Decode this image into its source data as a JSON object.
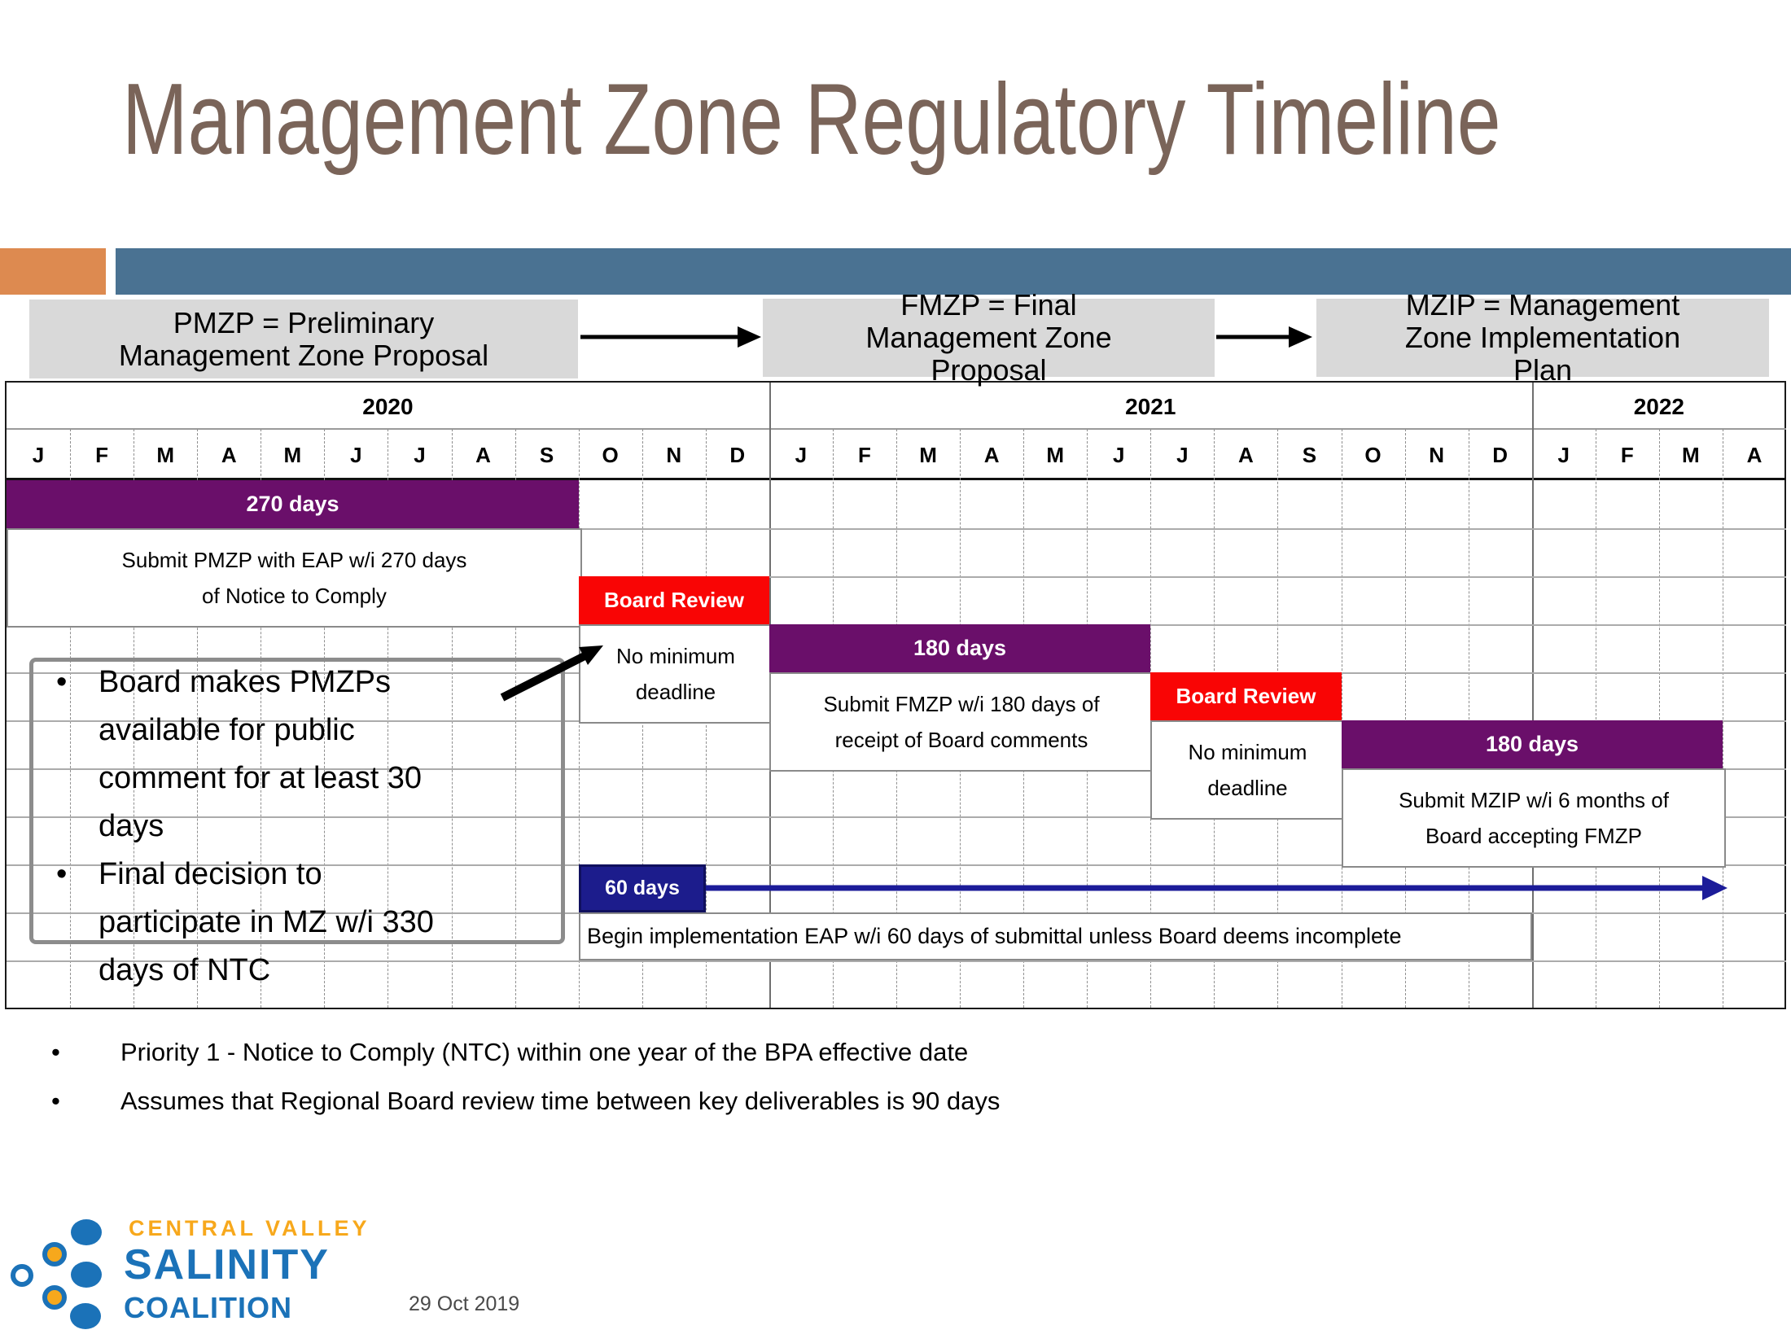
{
  "slide": {
    "title": "Management Zone Regulatory Timeline",
    "date": "29 Oct 2019"
  },
  "legend_flow": {
    "pmzp": "PMZP = Preliminary\nManagement Zone Proposal",
    "fmzp": "FMZP = Final\nManagement Zone\nProposal",
    "mzip": "MZIP = Management\nZone Implementation\nPlan"
  },
  "timeline": {
    "years": [
      {
        "label": "2020",
        "months": [
          "J",
          "F",
          "M",
          "A",
          "M",
          "J",
          "J",
          "A",
          "S",
          "O",
          "N",
          "D"
        ]
      },
      {
        "label": "2021",
        "months": [
          "J",
          "F",
          "M",
          "A",
          "M",
          "J",
          "J",
          "A",
          "S",
          "O",
          "N",
          "D"
        ]
      },
      {
        "label": "2022",
        "months": [
          "J",
          "F",
          "M",
          "A"
        ]
      }
    ],
    "bars": {
      "pmzp_bar": {
        "label": "270 days",
        "start": "Jan 2020",
        "months": 9,
        "note": "Submit PMZP with EAP w/i 270 days\nof Notice to Comply"
      },
      "review1": {
        "label": "Board Review",
        "start": "Oct 2020",
        "months": 3,
        "note": "No minimum\ndeadline"
      },
      "fmzp_bar": {
        "label": "180 days",
        "start": "Jan 2021",
        "months": 6,
        "note": "Submit FMZP w/i 180 days of\nreceipt of Board comments"
      },
      "review2": {
        "label": "Board Review",
        "start": "Jul 2021",
        "months": 3,
        "note": "No minimum\ndeadline"
      },
      "mzip_bar": {
        "label": "180 days",
        "start": "Oct 2021",
        "months": 6,
        "note": "Submit MZIP w/i 6 months of\nBoard accepting FMZP"
      },
      "impl_bar": {
        "label": "60 days",
        "start": "Oct 2020",
        "months": 2,
        "note": "Begin implementation EAP w/i 60 days of submittal unless Board deems incomplete"
      }
    },
    "callout": {
      "items": [
        "Board makes PMZPs\navailable for public\ncomment for at least 30\ndays",
        "Final decision to\nparticipate in MZ w/i 330\ndays of NTC"
      ]
    }
  },
  "footnotes": [
    "Priority 1 - Notice to Comply (NTC) within one year of the BPA effective date",
    "Assumes that Regional Board review time between key deliverables is 90 days"
  ],
  "logo": {
    "line1": "CENTRAL VALLEY",
    "line2": "SALINITY",
    "line3": "COALITION"
  },
  "colors": {
    "title_brown": "#7A6459",
    "accent_orange": "#DD8A50",
    "band_blue": "#4A7292",
    "legend_gray": "#D9D9D9",
    "bar_purple": "#6A0F6A",
    "review_red": "#F90505",
    "impl_navy": "#1C1C8C",
    "arrow_blue": "#1C1C99",
    "logo_blue": "#1B72B8",
    "logo_orange": "#F7A81C"
  }
}
